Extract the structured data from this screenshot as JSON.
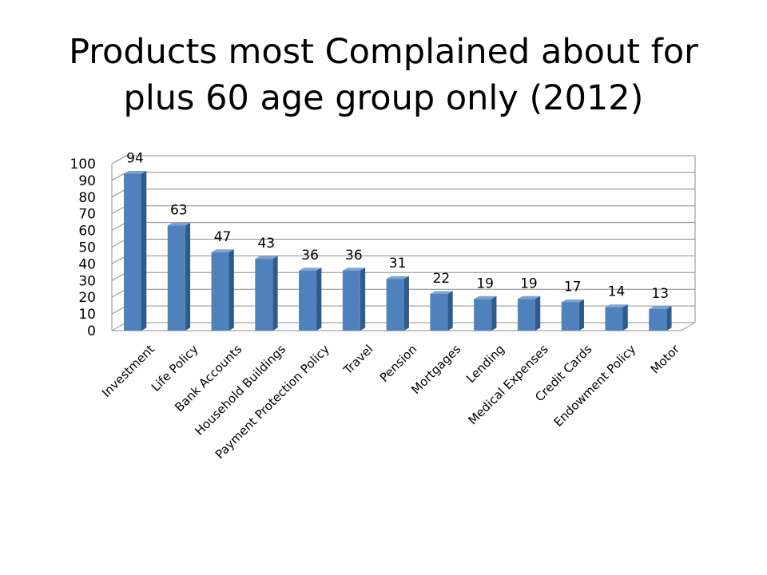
{
  "slide": {
    "title_line1": "Products most Complained about for",
    "title_line2": "plus 60 age group only (2012)"
  },
  "chart_data": {
    "type": "bar",
    "title": "",
    "xlabel": "",
    "ylabel": "",
    "ylim": [
      0,
      100
    ],
    "ytick_step": 10,
    "grid": true,
    "legend": "none",
    "bar_style": "3d",
    "colors": {
      "bar_front": "#4F81BD",
      "bar_side": "#2E5A8C",
      "bar_top": "#7DA3D6",
      "grid": "#8C8C8C"
    },
    "categories": [
      "Investment",
      "Life Policy",
      "Bank Accounts",
      "Household Buildings",
      "Payment Protection Policy",
      "Travel",
      "Pension",
      "Mortgages",
      "Lending",
      "Medical Expenses",
      "Credit Cards",
      "Endowment Policy",
      "Motor"
    ],
    "values": [
      94,
      63,
      47,
      43,
      36,
      36,
      31,
      22,
      19,
      19,
      17,
      14,
      13
    ]
  }
}
